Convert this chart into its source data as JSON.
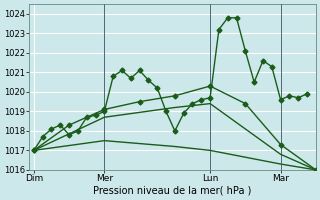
{
  "title": "Pression niveau de la mer( hPa )",
  "bg_color": "#cde8ea",
  "grid_color": "#ffffff",
  "line_color": "#1a5c1a",
  "ylim": [
    1016.0,
    1024.5
  ],
  "yticks": [
    1016,
    1017,
    1018,
    1019,
    1020,
    1021,
    1022,
    1023,
    1024
  ],
  "day_labels": [
    "Dim",
    "Mer",
    "Lun",
    "Mar"
  ],
  "day_positions": [
    0,
    8,
    20,
    28
  ],
  "xlim": [
    -0.5,
    32
  ],
  "vline_positions": [
    8,
    20,
    28
  ],
  "lines": [
    {
      "x": [
        0,
        1,
        2,
        3,
        4,
        5,
        6,
        7,
        8,
        9,
        10,
        11,
        12,
        13,
        14,
        15,
        16,
        17,
        18,
        19,
        20,
        21,
        22,
        23,
        24,
        25,
        26,
        27,
        28,
        29,
        30,
        31
      ],
      "y": [
        1017.0,
        1017.7,
        1018.1,
        1018.3,
        1017.8,
        1018.0,
        1018.7,
        1018.8,
        1019.0,
        1020.8,
        1021.1,
        1020.7,
        1021.1,
        1020.6,
        1020.2,
        1019.0,
        1018.0,
        1018.9,
        1019.4,
        1019.6,
        1019.7,
        1023.2,
        1023.8,
        1023.8,
        1022.1,
        1020.5,
        1021.6,
        1021.3,
        1019.6,
        1019.8,
        1019.7,
        1019.9
      ],
      "marker": "D",
      "markersize": 2.5,
      "linewidth": 1.0
    },
    {
      "x": [
        0,
        4,
        8,
        12,
        16,
        20,
        24,
        28,
        32
      ],
      "y": [
        1017.0,
        1018.3,
        1019.1,
        1019.5,
        1019.8,
        1020.3,
        1019.4,
        1017.3,
        1016.0
      ],
      "marker": "D",
      "markersize": 2.5,
      "linewidth": 1.0
    },
    {
      "x": [
        0,
        8,
        16,
        20,
        28,
        32
      ],
      "y": [
        1017.0,
        1018.7,
        1019.2,
        1019.4,
        1016.8,
        1016.0
      ],
      "marker": null,
      "markersize": 0,
      "linewidth": 1.0
    },
    {
      "x": [
        0,
        8,
        16,
        20,
        28,
        32
      ],
      "y": [
        1017.0,
        1017.5,
        1017.2,
        1017.0,
        1016.3,
        1016.0
      ],
      "marker": null,
      "markersize": 0,
      "linewidth": 1.0
    }
  ]
}
